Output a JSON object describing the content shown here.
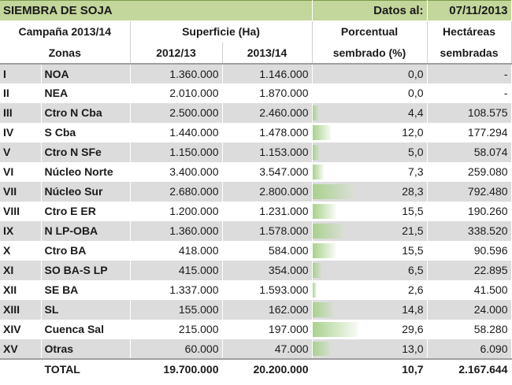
{
  "title": "SIEMBRA DE SOJA",
  "datos_label": "Datos al:",
  "fecha": "07/11/2013",
  "headers": {
    "campana": "Campaña 2013/14",
    "superficie": "Superficie (Ha)",
    "porcentual_1": "Porcentual",
    "porcentual_2": "sembrado (%)",
    "hectareas_1": "Hectáreas",
    "hectareas_2": "sembradas",
    "zonas": "Zonas",
    "y2012": "2012/13",
    "y2013": "2013/14"
  },
  "rows": [
    {
      "roman": "I",
      "zona": "NOA",
      "s2012": "1.360.000",
      "s2013": "1.146.000",
      "pct": "0,0",
      "pct_value": 0.0,
      "ha": "-"
    },
    {
      "roman": "II",
      "zona": "NEA",
      "s2012": "2.010.000",
      "s2013": "1.870.000",
      "pct": "0,0",
      "pct_value": 0.0,
      "ha": "-"
    },
    {
      "roman": "III",
      "zona": "Ctro N Cba",
      "s2012": "2.500.000",
      "s2013": "2.460.000",
      "pct": "4,4",
      "pct_value": 4.4,
      "ha": "108.575"
    },
    {
      "roman": "IV",
      "zona": "S Cba",
      "s2012": "1.440.000",
      "s2013": "1.478.000",
      "pct": "12,0",
      "pct_value": 12.0,
      "ha": "177.294"
    },
    {
      "roman": "V",
      "zona": "Ctro N SFe",
      "s2012": "1.150.000",
      "s2013": "1.153.000",
      "pct": "5,0",
      "pct_value": 5.0,
      "ha": "58.074"
    },
    {
      "roman": "VI",
      "zona": "Núcleo Norte",
      "s2012": "3.400.000",
      "s2013": "3.547.000",
      "pct": "7,3",
      "pct_value": 7.3,
      "ha": "259.080"
    },
    {
      "roman": "VII",
      "zona": "Núcleo Sur",
      "s2012": "2.680.000",
      "s2013": "2.800.000",
      "pct": "28,3",
      "pct_value": 28.3,
      "ha": "792.480"
    },
    {
      "roman": "VIII",
      "zona": "Ctro E ER",
      "s2012": "1.200.000",
      "s2013": "1.231.000",
      "pct": "15,5",
      "pct_value": 15.5,
      "ha": "190.260"
    },
    {
      "roman": "IX",
      "zona": "N LP-OBA",
      "s2012": "1.360.000",
      "s2013": "1.578.000",
      "pct": "21,5",
      "pct_value": 21.5,
      "ha": "338.520"
    },
    {
      "roman": "X",
      "zona": "Ctro BA",
      "s2012": "418.000",
      "s2013": "584.000",
      "pct": "15,5",
      "pct_value": 15.5,
      "ha": "90.596"
    },
    {
      "roman": "XI",
      "zona": "SO BA-S LP",
      "s2012": "415.000",
      "s2013": "354.000",
      "pct": "6,5",
      "pct_value": 6.5,
      "ha": "22.895"
    },
    {
      "roman": "XII",
      "zona": "SE BA",
      "s2012": "1.337.000",
      "s2013": "1.593.000",
      "pct": "2,6",
      "pct_value": 2.6,
      "ha": "41.500"
    },
    {
      "roman": "XIII",
      "zona": "SL",
      "s2012": "155.000",
      "s2013": "162.000",
      "pct": "14,8",
      "pct_value": 14.8,
      "ha": "24.000"
    },
    {
      "roman": "XIV",
      "zona": "Cuenca Sal",
      "s2012": "215.000",
      "s2013": "197.000",
      "pct": "29,6",
      "pct_value": 29.6,
      "ha": "58.280"
    },
    {
      "roman": "XV",
      "zona": "Otras",
      "s2012": "60.000",
      "s2013": "47.000",
      "pct": "13,0",
      "pct_value": 13.0,
      "ha": "6.090"
    }
  ],
  "total": {
    "label": "TOTAL",
    "s2012": "19.700.000",
    "s2013": "20.200.000",
    "pct": "10,7",
    "ha": "2.167.644"
  },
  "colors": {
    "title_bg": "#c3d69b",
    "bar": "#a9d18e",
    "row_alt": "#dcdcdc"
  }
}
